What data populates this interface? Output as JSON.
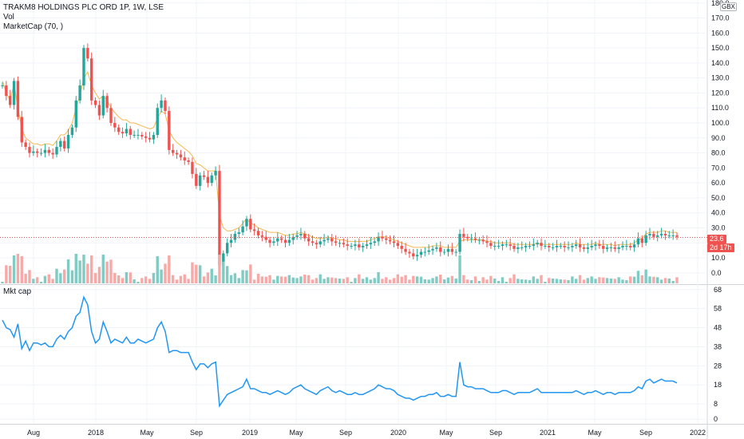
{
  "legend": {
    "symbol_line": "TRAKM8 HOLDINGS PLC ORD 1P, 1W, LSE",
    "vol_label": "Vol",
    "mcap_label": "MarketCap (70, )",
    "lower_label": "Mkt cap"
  },
  "currency": "GBX",
  "last_price_label": "23.6",
  "countdown_label": "2d 17h",
  "colors": {
    "up": "#26a69a",
    "down": "#ef5350",
    "up_vol": "#80cbc4",
    "down_vol": "#f7a9a7",
    "ma": "#f5a623",
    "mcap_line": "#2196f3",
    "grid": "#f0f3fa"
  },
  "chart_data": [
    {
      "type": "candlestick",
      "title": "TRAKM8 HOLDINGS PLC ORD 1P, 1W, LSE",
      "x_tick_labels": [
        "Aug",
        "2018",
        "May",
        "Sep",
        "2019",
        "May",
        "Sep",
        "2020",
        "May",
        "Sep",
        "2021",
        "May",
        "Sep",
        "2022"
      ],
      "y_tick_labels": [
        "0.0",
        "10.0",
        "20.0",
        "30.0",
        "40.0",
        "50.0",
        "60.0",
        "70.0",
        "80.0",
        "90.0",
        "100.0",
        "110.0",
        "120.0",
        "130.0",
        "140.0",
        "150.0",
        "160.0",
        "170.0",
        "180.0"
      ],
      "ylim": [
        -7,
        182
      ],
      "grid": true,
      "last_price": 23.6,
      "x_start": "2017-05",
      "x_end": "2021-11",
      "series": [
        {
          "name": "Close",
          "values": [
            125,
            118,
            112,
            128,
            104,
            87,
            84,
            80,
            81,
            80,
            80,
            82,
            80,
            79,
            84,
            88,
            83,
            92,
            97,
            115,
            125,
            150,
            143,
            115,
            112,
            105,
            118,
            110,
            100,
            97,
            94,
            93,
            96,
            92,
            92,
            92,
            91,
            90,
            89,
            92,
            110,
            115,
            108,
            82,
            80,
            79,
            77,
            75,
            74,
            66,
            58,
            65,
            64,
            60,
            65,
            68,
            5,
            13,
            20,
            22,
            26,
            27,
            31,
            36,
            29,
            28,
            25,
            24,
            22,
            20,
            21,
            23,
            22,
            20,
            22,
            24,
            25,
            26,
            23,
            21,
            20,
            19,
            21,
            22,
            23,
            21,
            20,
            20,
            19,
            18,
            18,
            19,
            17,
            18,
            19,
            20,
            21,
            24,
            23,
            22,
            21,
            20,
            18,
            16,
            14,
            13,
            11,
            12,
            14,
            14,
            15,
            16,
            17,
            14,
            14,
            16,
            14,
            14,
            26,
            24,
            23,
            23,
            22,
            22,
            21,
            20,
            18,
            18,
            18,
            19,
            19,
            18,
            16,
            17,
            17,
            18,
            18,
            19,
            20,
            18,
            18,
            17,
            17,
            18,
            18,
            17,
            17,
            18,
            19,
            17,
            16,
            17,
            18,
            19,
            18,
            16,
            17,
            17,
            16,
            17,
            18,
            18,
            17,
            19,
            23,
            20,
            25,
            26,
            24,
            25,
            26,
            25,
            25,
            25,
            24
          ]
        },
        {
          "name": "MarketCap (70, )",
          "values": [
            128,
            120,
            115,
            126,
            110,
            96,
            90,
            88,
            86,
            86,
            85,
            86,
            86,
            85,
            88,
            92,
            92,
            95,
            100,
            110,
            118,
            130,
            134,
            125,
            120,
            116,
            118,
            115,
            110,
            107,
            104,
            102,
            102,
            100,
            100,
            99,
            98,
            97,
            96,
            97,
            103,
            108,
            106,
            95,
            90,
            87,
            85,
            83,
            81,
            78,
            73,
            72,
            70,
            68,
            68,
            68,
            38,
            30,
            28,
            28,
            29,
            30,
            33,
            36,
            33,
            32,
            30,
            29,
            28,
            27,
            27,
            27,
            26,
            25,
            25,
            26,
            26,
            27,
            26,
            25,
            24,
            23,
            23,
            23,
            24,
            23,
            23,
            22,
            22,
            21,
            21,
            21,
            21,
            21,
            21,
            22,
            23,
            24,
            24,
            24,
            23,
            22,
            21,
            20,
            19,
            18,
            17,
            17,
            17,
            17,
            17,
            18,
            18,
            18,
            17,
            17,
            17,
            17,
            21,
            22,
            22,
            22,
            22,
            22,
            22,
            21,
            21,
            20,
            20,
            20,
            20,
            20,
            19,
            19,
            19,
            19,
            19,
            19,
            20,
            19,
            19,
            19,
            19,
            19,
            19,
            19,
            19,
            19,
            20,
            19,
            19,
            19,
            19,
            20,
            19,
            19,
            19,
            19,
            18,
            19,
            19,
            19,
            19,
            20,
            22,
            23,
            26,
            27,
            27,
            27,
            28,
            28,
            27,
            27,
            27
          ]
        }
      ]
    },
    {
      "type": "bar",
      "title": "Vol"
    },
    {
      "type": "line",
      "title": "Mkt cap",
      "y_tick_labels": [
        "0",
        "8",
        "18",
        "28",
        "38",
        "48",
        "58",
        "68"
      ],
      "ylim": [
        -2,
        70
      ],
      "grid": true,
      "series": [
        {
          "name": "Mkt cap",
          "values": [
            52,
            48,
            47,
            43,
            50,
            37,
            41,
            36,
            40,
            40,
            39,
            40,
            38,
            38,
            42,
            44,
            42,
            46,
            48,
            54,
            56,
            64,
            60,
            46,
            40,
            42,
            51,
            46,
            40,
            42,
            41,
            40,
            43,
            40,
            40,
            42,
            41,
            40,
            41,
            42,
            48,
            51,
            46,
            35,
            36,
            36,
            35,
            35,
            35,
            30,
            26,
            29,
            29,
            27,
            29,
            30,
            7,
            10,
            13,
            14,
            15,
            16,
            17,
            21,
            16,
            16,
            15,
            14,
            14,
            13,
            14,
            15,
            14,
            13,
            14,
            16,
            17,
            18,
            16,
            15,
            14,
            13,
            15,
            16,
            17,
            15,
            14,
            15,
            14,
            13,
            13,
            14,
            13,
            13,
            14,
            15,
            16,
            18,
            17,
            16,
            16,
            15,
            13,
            12,
            11,
            11,
            10,
            11,
            12,
            12,
            13,
            13,
            14,
            12,
            12,
            13,
            12,
            12,
            30,
            18,
            17,
            17,
            16,
            16,
            16,
            15,
            14,
            14,
            14,
            15,
            15,
            14,
            13,
            14,
            14,
            14,
            14,
            15,
            16,
            14,
            14,
            14,
            14,
            14,
            14,
            14,
            14,
            14,
            15,
            14,
            13,
            14,
            14,
            15,
            14,
            13,
            14,
            14,
            13,
            14,
            14,
            14,
            14,
            15,
            17,
            16,
            20,
            21,
            19,
            20,
            21,
            20,
            20,
            20,
            19
          ]
        }
      ]
    }
  ]
}
